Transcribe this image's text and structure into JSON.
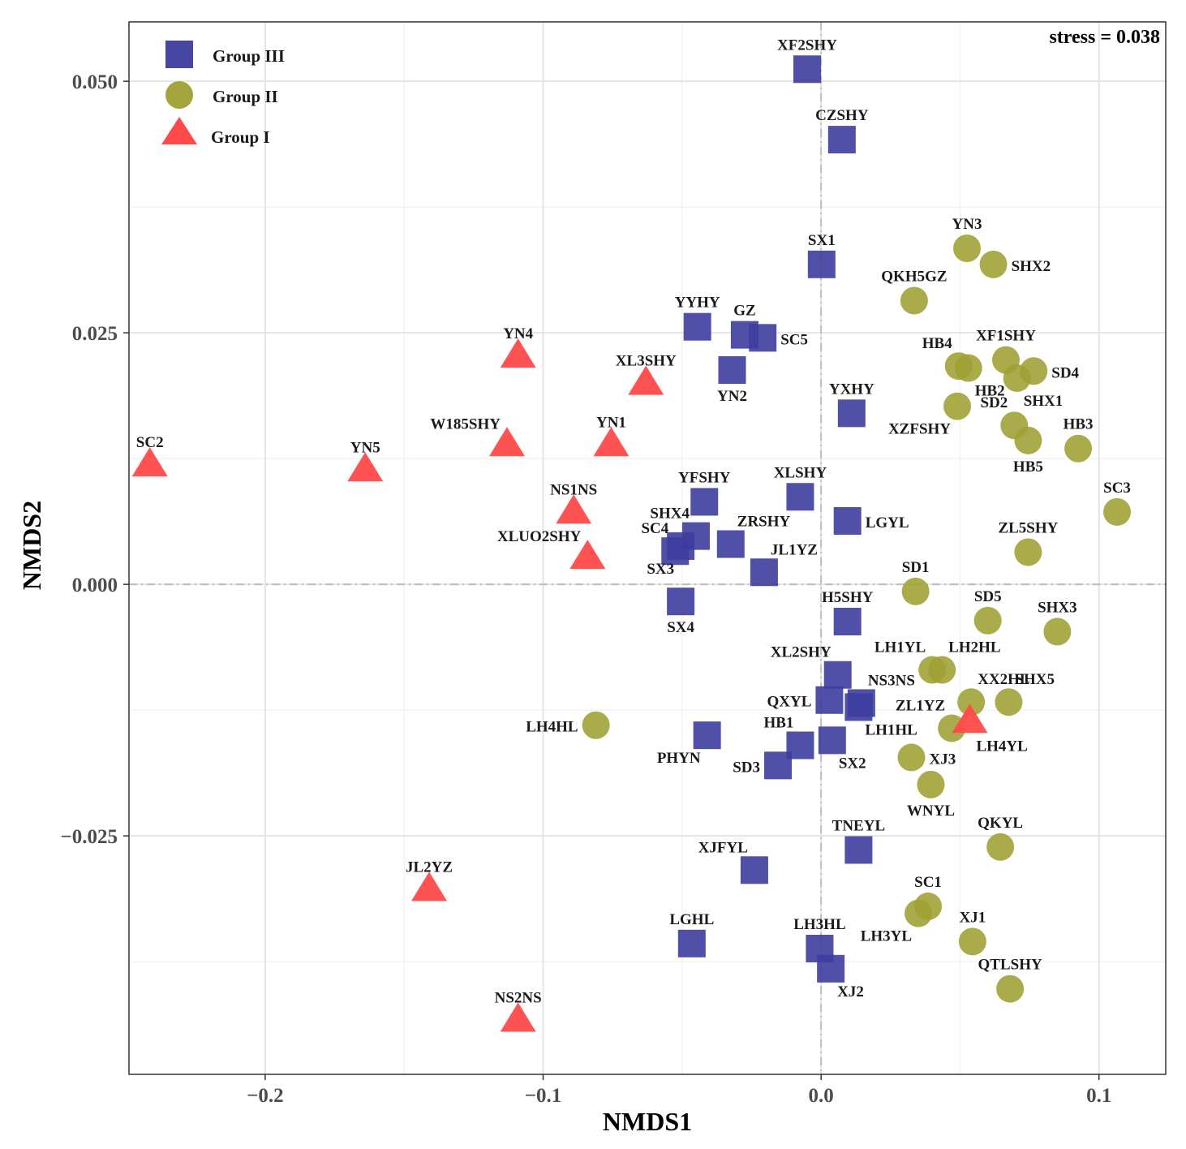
{
  "chart_data": {
    "type": "scatter",
    "title": "",
    "xlabel": "NMDS1",
    "ylabel": "NMDS2",
    "xlim": [
      -0.249,
      0.124
    ],
    "ylim": [
      -0.0487,
      0.0559
    ],
    "x_ticks": [
      -0.2,
      -0.1,
      0.0,
      0.1
    ],
    "x_tick_labels": [
      "−0.2",
      "−0.1",
      "0.0",
      "0.1"
    ],
    "y_ticks": [
      0.05,
      0.025,
      0.0,
      -0.025
    ],
    "y_tick_labels": [
      "0.050",
      "0.025",
      "0.000",
      "−0.025"
    ],
    "annotation": "stress = 0.038",
    "legend": {
      "position": "top-left",
      "entries": [
        {
          "label": "Group III",
          "group": "III"
        },
        {
          "label": "Group II",
          "group": "II"
        },
        {
          "label": "Group I",
          "group": "I"
        }
      ]
    },
    "group_colors": {
      "III": "#3d3d9e",
      "II": "#9ea032",
      "I": "#ff4a4a"
    },
    "highlight_label_color": "#8a8a1e",
    "series": [
      {
        "name": "Group III",
        "group": "III",
        "points": [
          {
            "label": "XF2SHY",
            "x": -0.005,
            "y": 0.0512,
            "label_side": "top"
          },
          {
            "label": "CZSHY",
            "x": 0.0075,
            "y": 0.0442,
            "label_side": "top"
          },
          {
            "label": "SX1",
            "x": 0.0002,
            "y": 0.0318,
            "label_side": "top"
          },
          {
            "label": "YYHY",
            "x": -0.0445,
            "y": 0.0256,
            "label_side": "top"
          },
          {
            "label": "GZ",
            "x": -0.0275,
            "y": 0.0248,
            "label_side": "top"
          },
          {
            "label": "SC5",
            "x": -0.021,
            "y": 0.0245,
            "label_side": "right"
          },
          {
            "label": "YN2",
            "x": -0.032,
            "y": 0.0213,
            "label_side": "bottom"
          },
          {
            "label": "YXHY",
            "x": 0.011,
            "y": 0.017,
            "label_side": "top"
          },
          {
            "label": "XLSHY",
            "x": -0.0075,
            "y": 0.0087,
            "label_side": "top"
          },
          {
            "label": "LGYL",
            "x": 0.0095,
            "y": 0.0063,
            "label_side": "right"
          },
          {
            "label": "YFSHY",
            "x": -0.042,
            "y": 0.0082,
            "label_side": "top"
          },
          {
            "label": "SHX4",
            "x": -0.045,
            "y": 0.0048,
            "label_side": "topleft"
          },
          {
            "label": "SC4",
            "x": -0.0525,
            "y": 0.0033,
            "label_side": "topleft"
          },
          {
            "label": "SX3",
            "x": -0.0505,
            "y": 0.0038,
            "label_side": "bottomleft"
          },
          {
            "label": "ZRSHY",
            "x": -0.0325,
            "y": 0.004,
            "label_side": "topright"
          },
          {
            "label": "JL1YZ",
            "x": -0.0205,
            "y": 0.0012,
            "label_side": "topright"
          },
          {
            "label": "SX4",
            "x": -0.0505,
            "y": -0.0017,
            "label_side": "bottom"
          },
          {
            "label": "H5SHY",
            "x": 0.0095,
            "y": -0.0037,
            "label_side": "top"
          },
          {
            "label": "XL2SHY",
            "x": 0.006,
            "y": -0.009,
            "label_side": "topleft"
          },
          {
            "label": "NS3NS",
            "x": 0.0145,
            "y": -0.0118,
            "label_side": "topright"
          },
          {
            "label": "QXYL",
            "x": 0.003,
            "y": -0.0115,
            "label_side": "left"
          },
          {
            "label": "LH1HL",
            "x": 0.0135,
            "y": -0.0122,
            "label_side": "bottomright"
          },
          {
            "label": "HB1",
            "x": -0.0075,
            "y": -0.016,
            "label_side": "topleft"
          },
          {
            "label": "SX2",
            "x": 0.004,
            "y": -0.0155,
            "label_side": "bottomright"
          },
          {
            "label": "PHYN",
            "x": -0.041,
            "y": -0.015,
            "label_side": "bottomleft"
          },
          {
            "label": "SD3",
            "x": -0.0155,
            "y": -0.018,
            "label_side": "left"
          },
          {
            "label": "TNEYL",
            "x": 0.0135,
            "y": -0.0264,
            "label_side": "top"
          },
          {
            "label": "XJFYL",
            "x": -0.024,
            "y": -0.0284,
            "label_side": "topleft"
          },
          {
            "label": "LGHL",
            "x": -0.0465,
            "y": -0.0357,
            "label_side": "top"
          },
          {
            "label": "LH3HL",
            "x": -0.0005,
            "y": -0.0362,
            "label_side": "top"
          },
          {
            "label": "XJ2",
            "x": 0.0035,
            "y": -0.0382,
            "label_side": "bottomright"
          }
        ]
      },
      {
        "name": "Group II",
        "group": "II",
        "points": [
          {
            "label": "YN3",
            "x": 0.0525,
            "y": 0.0334,
            "label_side": "top"
          },
          {
            "label": "SHX2",
            "x": 0.062,
            "y": 0.0318,
            "label_side": "right"
          },
          {
            "label": "QKH5GZ",
            "x": 0.0335,
            "y": 0.0282,
            "label_side": "top"
          },
          {
            "label": "HB4",
            "x": 0.0495,
            "y": 0.0217,
            "label_side": "topleft"
          },
          {
            "label": "HB2",
            "x": 0.053,
            "y": 0.0215,
            "label_side": "bottomright"
          },
          {
            "label": "XF1SHY",
            "x": 0.0665,
            "y": 0.0223,
            "label_side": "top"
          },
          {
            "label": "SD4",
            "x": 0.0765,
            "y": 0.0212,
            "label_side": "right"
          },
          {
            "label": "SHX1",
            "x": 0.0705,
            "y": 0.0205,
            "label_side": "bottomright"
          },
          {
            "label": "XZFSHY",
            "x": 0.049,
            "y": 0.0177,
            "label_side": "bottomleft"
          },
          {
            "label": "SD2",
            "x": 0.0695,
            "y": 0.0158,
            "label_side": "topleft"
          },
          {
            "label": "HB5",
            "x": 0.0745,
            "y": 0.0143,
            "label_side": "bottom"
          },
          {
            "label": "HB3",
            "x": 0.0925,
            "y": 0.0135,
            "label_side": "top"
          },
          {
            "label": "SC3",
            "x": 0.1065,
            "y": 0.0072,
            "label_side": "top"
          },
          {
            "label": "ZL5SHY",
            "x": 0.0745,
            "y": 0.0032,
            "label_side": "top"
          },
          {
            "label": "SD1",
            "x": 0.034,
            "y": -0.0007,
            "label_side": "top"
          },
          {
            "label": "SD5",
            "x": 0.06,
            "y": -0.0036,
            "label_side": "top"
          },
          {
            "label": "SHX3",
            "x": 0.085,
            "y": -0.0047,
            "label_side": "top"
          },
          {
            "label": "LH1YL",
            "x": 0.04,
            "y": -0.0085,
            "label_side": "topleft"
          },
          {
            "label": "LH2HL",
            "x": 0.0435,
            "y": -0.0085,
            "label_side": "topright"
          },
          {
            "label": "XX2HL",
            "x": 0.054,
            "y": -0.0117,
            "label_side": "topright"
          },
          {
            "label": "SHX5",
            "x": 0.0675,
            "y": -0.0117,
            "label_side": "topright"
          },
          {
            "label": "ZL1YZ",
            "x": 0.047,
            "y": -0.0143,
            "label_side": "topleft"
          },
          {
            "label": "LH4HL",
            "x": -0.081,
            "y": -0.014,
            "label_side": "left"
          },
          {
            "label": "XJ3",
            "x": 0.0325,
            "y": -0.0172,
            "label_side": "right"
          },
          {
            "label": "WNYL",
            "x": 0.0395,
            "y": -0.0199,
            "label_side": "bottom",
            "highlight": true
          },
          {
            "label": "QKYL",
            "x": 0.0645,
            "y": -0.0261,
            "label_side": "top"
          },
          {
            "label": "SC1",
            "x": 0.0385,
            "y": -0.032,
            "label_side": "top"
          },
          {
            "label": "LH3YL",
            "x": 0.035,
            "y": -0.0327,
            "label_side": "bottomleft"
          },
          {
            "label": "XJ1",
            "x": 0.0545,
            "y": -0.0355,
            "label_side": "top"
          },
          {
            "label": "QTLSHY",
            "x": 0.068,
            "y": -0.0402,
            "label_side": "top"
          }
        ]
      },
      {
        "name": "Group I",
        "group": "I",
        "points": [
          {
            "label": "YN4",
            "x": -0.109,
            "y": 0.0225,
            "label_side": "top"
          },
          {
            "label": "XL3SHY",
            "x": -0.063,
            "y": 0.0198,
            "label_side": "top"
          },
          {
            "label": "W185SHY",
            "x": -0.113,
            "y": 0.0137,
            "label_side": "topleft"
          },
          {
            "label": "YN1",
            "x": -0.0755,
            "y": 0.0137,
            "label_side": "top"
          },
          {
            "label": "SC2",
            "x": -0.2415,
            "y": 0.0117,
            "label_side": "top"
          },
          {
            "label": "YN5",
            "x": -0.164,
            "y": 0.0112,
            "label_side": "top"
          },
          {
            "label": "NS1NS",
            "x": -0.089,
            "y": 0.007,
            "label_side": "top"
          },
          {
            "label": "XLUO2SHY",
            "x": -0.084,
            "y": 0.0025,
            "label_side": "topleft"
          },
          {
            "label": "LH4YL",
            "x": 0.0535,
            "y": -0.0138,
            "label_side": "bottomright"
          },
          {
            "label": "JL2YZ",
            "x": -0.141,
            "y": -0.0305,
            "label_side": "top"
          },
          {
            "label": "NS2NS",
            "x": -0.109,
            "y": -0.0435,
            "label_side": "top"
          }
        ]
      }
    ]
  }
}
